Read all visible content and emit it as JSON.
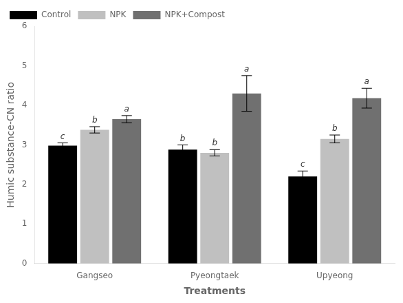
{
  "chart_data": {
    "type": "bar",
    "categories": [
      "Gangseo",
      "Pyeongtaek",
      "Upyeong"
    ],
    "series": [
      {
        "name": "Control",
        "color": "#000000",
        "values": [
          2.98,
          2.88,
          2.2
        ],
        "errors": [
          0.07,
          0.12,
          0.14
        ],
        "sig_labels": [
          "c",
          "b",
          "c"
        ]
      },
      {
        "name": "NPK",
        "color": "#c0c0c0",
        "values": [
          3.38,
          2.8,
          3.15
        ],
        "errors": [
          0.08,
          0.08,
          0.1
        ],
        "sig_labels": [
          "b",
          "b",
          "b"
        ]
      },
      {
        "name": "NPK+Compost",
        "color": "#707070",
        "values": [
          3.65,
          4.3,
          4.18
        ],
        "errors": [
          0.09,
          0.45,
          0.25
        ],
        "sig_labels": [
          "a",
          "a",
          "a"
        ]
      }
    ],
    "xlabel": "Treatments",
    "ylabel": "Humic substance-CN ratio",
    "ylim": [
      0,
      6
    ],
    "yticks": [
      0,
      1,
      2,
      3,
      4,
      5,
      6
    ],
    "grid": false,
    "legend": "upper left"
  }
}
